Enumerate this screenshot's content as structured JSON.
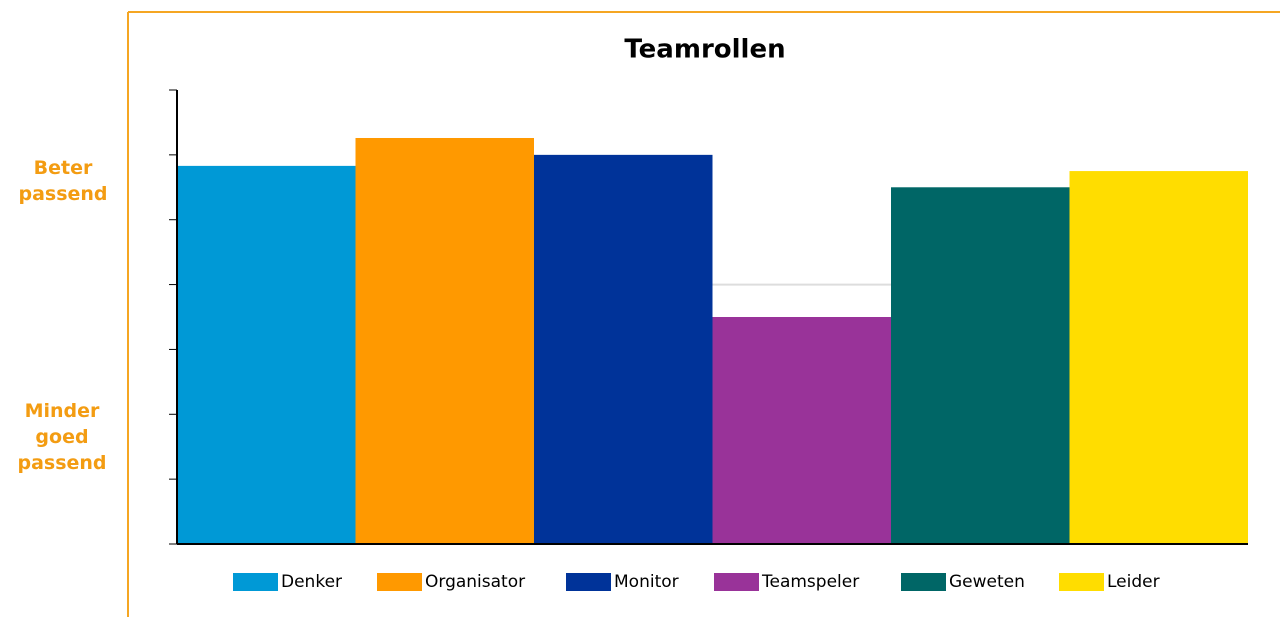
{
  "chart_data": {
    "type": "bar",
    "title": "Teamrollen",
    "categories": [
      "Denker",
      "Organisator",
      "Monitor",
      "Teamspeler",
      "Geweten",
      "Leider"
    ],
    "values": [
      5.83,
      6.26,
      6.0,
      3.5,
      5.5,
      5.75
    ],
    "colors": [
      "#0099d6",
      "#ff9900",
      "#003399",
      "#993399",
      "#006666",
      "#ffdd00"
    ],
    "ylim": [
      0,
      7
    ],
    "yticks": [
      0,
      1,
      2,
      3,
      4,
      5,
      6,
      7
    ],
    "reference_line": 4,
    "annotations": [
      "Beter passend",
      "Minder goed passend"
    ],
    "legend": "bottom"
  }
}
